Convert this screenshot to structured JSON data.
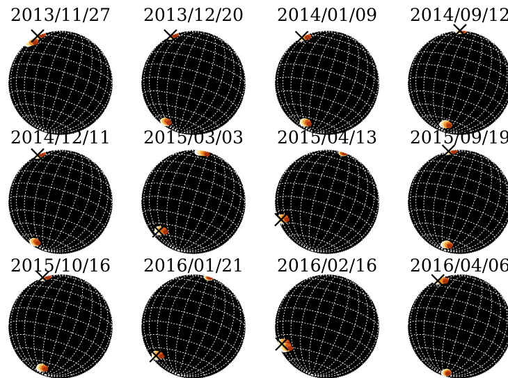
{
  "figure": {
    "panels": [
      {
        "date": "2013/11/27",
        "marker_lon": -76,
        "marker_lat": 45,
        "arc_lon": -70,
        "arc_lat": 30
      },
      {
        "date": "2013/12/20",
        "marker_lon": -76,
        "marker_lat": 45,
        "arc_lon": -60,
        "arc_lat": -70
      },
      {
        "date": "2014/01/09",
        "marker_lon": -70,
        "marker_lat": 40,
        "arc_lon": -35,
        "arc_lat": -70
      },
      {
        "date": "2014/09/12",
        "marker_lon": -60,
        "marker_lat": 70,
        "arc_lon": -10,
        "arc_lat": -70
      },
      {
        "date": "2014/12/11",
        "marker_lon": -76,
        "marker_lat": 45,
        "arc_lon": -55,
        "arc_lat": -72
      },
      {
        "date": "2015/03/03",
        "marker_lon": -55,
        "marker_lat": -55,
        "arc_lon": -20,
        "arc_lat": 60
      },
      {
        "date": "2015/04/13",
        "marker_lon": -75,
        "marker_lat": -40,
        "arc_lon": 10,
        "arc_lat": 85
      },
      {
        "date": "2015/09/19",
        "marker_lon": -60,
        "marker_lat": 55,
        "arc_lon": -5,
        "arc_lat": -72
      },
      {
        "date": "2015/10/16",
        "marker_lon": -70,
        "marker_lat": 50,
        "arc_lon": -25,
        "arc_lat": -72
      },
      {
        "date": "2016/01/21",
        "marker_lon": -65,
        "marker_lat": -55,
        "arc_lon": 0,
        "arc_lat": 85
      },
      {
        "date": "2016/02/16",
        "marker_lon": -72,
        "marker_lat": -40,
        "arc_lon": -70,
        "arc_lat": -45
      },
      {
        "date": "2016/04/06",
        "marker_lon": -60,
        "marker_lat": 40,
        "arc_lon": 0,
        "arc_lat": -80
      }
    ]
  }
}
